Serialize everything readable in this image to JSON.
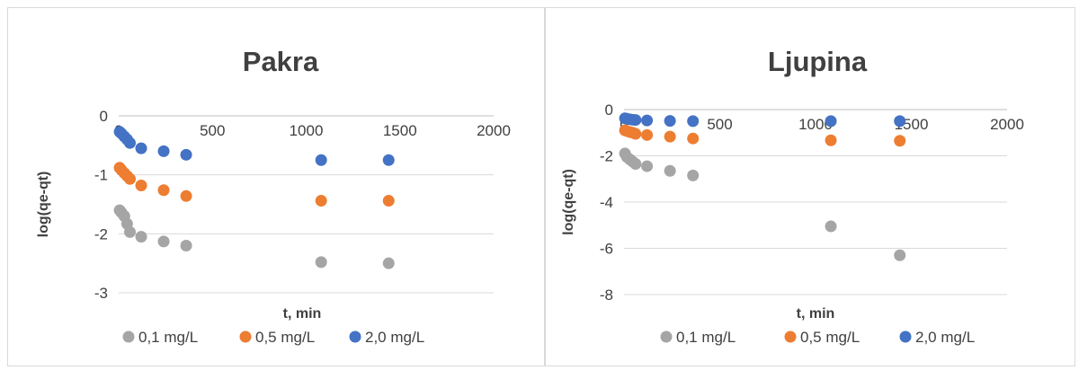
{
  "chart_data": [
    {
      "type": "scatter",
      "title": "Pakra",
      "xlabel": "t, min",
      "ylabel": "log(qe-qt)",
      "xlim": [
        0,
        2000
      ],
      "ylim": [
        -3,
        0
      ],
      "xticks": [
        "0",
        "500",
        "1000",
        "1500",
        "2000"
      ],
      "yticks": [
        "0",
        "-1",
        "-2",
        "-3"
      ],
      "legend": "bottom",
      "grid": true,
      "series": [
        {
          "name": "0,1 mg/L",
          "color": "#a5a5a5",
          "x": [
            5,
            15,
            30,
            45,
            60,
            120,
            240,
            360,
            1080,
            1440
          ],
          "y": [
            -1.6,
            -1.64,
            -1.7,
            -1.83,
            -1.97,
            -2.05,
            -2.13,
            -2.2,
            -2.48,
            -2.5
          ]
        },
        {
          "name": "0,5 mg/L",
          "color": "#ed7d31",
          "x": [
            5,
            15,
            30,
            45,
            60,
            120,
            240,
            360,
            1080,
            1440
          ],
          "y": [
            -0.88,
            -0.92,
            -0.97,
            -1.02,
            -1.07,
            -1.18,
            -1.26,
            -1.36,
            -1.44,
            -1.44
          ]
        },
        {
          "name": "2,0 mg/L",
          "color": "#4472c4",
          "x": [
            5,
            15,
            30,
            45,
            60,
            120,
            240,
            360,
            1080,
            1440
          ],
          "y": [
            -0.27,
            -0.3,
            -0.35,
            -0.4,
            -0.46,
            -0.55,
            -0.6,
            -0.66,
            -0.75,
            -0.75
          ]
        }
      ]
    },
    {
      "type": "scatter",
      "title": "Ljupina",
      "xlabel": "t, min",
      "ylabel": "log(qe-qt)",
      "xlim": [
        0,
        2000
      ],
      "ylim": [
        -8,
        0
      ],
      "xticks": [
        "0",
        "500",
        "1000",
        "1500",
        "2000"
      ],
      "yticks": [
        "0",
        "-2",
        "-4",
        "-6",
        "-8"
      ],
      "legend": "bottom",
      "grid": true,
      "series": [
        {
          "name": "0,1 mg/L",
          "color": "#a5a5a5",
          "x": [
            5,
            15,
            30,
            45,
            60,
            120,
            240,
            360,
            1080,
            1440
          ],
          "y": [
            -1.9,
            -2.05,
            -2.15,
            -2.25,
            -2.35,
            -2.45,
            -2.65,
            -2.85,
            -5.05,
            -6.3
          ]
        },
        {
          "name": "0,5 mg/L",
          "color": "#ed7d31",
          "x": [
            5,
            15,
            30,
            45,
            60,
            120,
            240,
            360,
            1080,
            1440
          ],
          "y": [
            -0.9,
            -0.93,
            -0.97,
            -1.0,
            -1.05,
            -1.1,
            -1.17,
            -1.25,
            -1.33,
            -1.35
          ]
        },
        {
          "name": "2,0 mg/L",
          "color": "#4472c4",
          "x": [
            5,
            15,
            30,
            45,
            60,
            120,
            240,
            360,
            1080,
            1440
          ],
          "y": [
            -0.38,
            -0.4,
            -0.42,
            -0.44,
            -0.45,
            -0.47,
            -0.49,
            -0.5,
            -0.5,
            -0.5
          ]
        }
      ]
    }
  ]
}
